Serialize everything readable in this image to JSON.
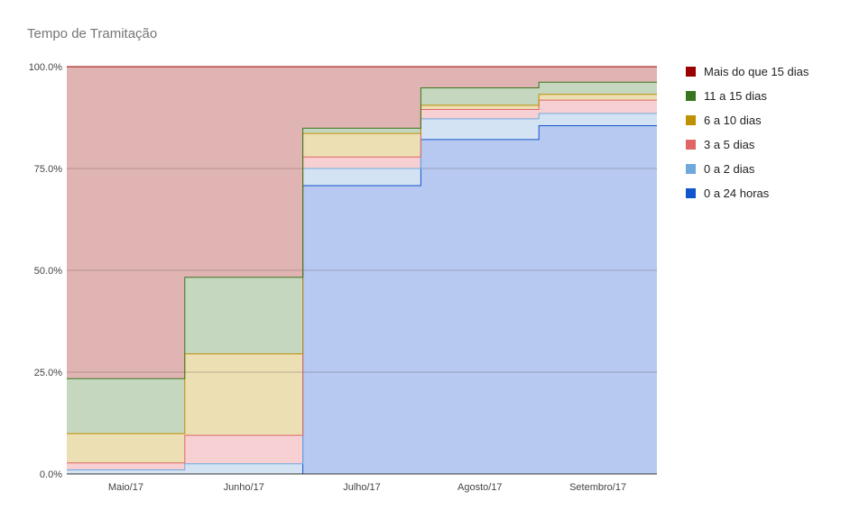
{
  "chart_data": {
    "type": "area",
    "title": "Tempo de Tramitação",
    "categories": [
      "Maio/17",
      "Junho/17",
      "Julho/17",
      "Agosto/17",
      "Setembro/17"
    ],
    "ylim": [
      0,
      100
    ],
    "yticks": [
      "0.0%",
      "25.0%",
      "50.0%",
      "75.0%",
      "100.0%"
    ],
    "stacked_percent": true,
    "grid": true,
    "legend_position": "right",
    "series": [
      {
        "name": "0 a 24 horas",
        "color": "#1155cc",
        "fill": "#b8c9f1",
        "values": [
          0.0,
          0.0,
          70.8,
          82.1,
          85.5
        ]
      },
      {
        "name": "0 a 2 dias",
        "color": "#6fa8dc",
        "fill": "#d4e3f3",
        "values": [
          1.0,
          2.5,
          4.2,
          5.1,
          3.0
        ]
      },
      {
        "name": "3 a 5 dias",
        "color": "#e06666",
        "fill": "#f6d0d2",
        "values": [
          1.7,
          7.0,
          2.8,
          2.3,
          3.3
        ]
      },
      {
        "name": "6 a 10 dias",
        "color": "#bf9000",
        "fill": "#ecdfb4",
        "values": [
          7.2,
          20.0,
          5.8,
          1.0,
          1.4
        ]
      },
      {
        "name": "11 a 15 dias",
        "color": "#38761d",
        "fill": "#c5d7bf",
        "values": [
          13.5,
          18.8,
          1.3,
          4.3,
          3.0
        ]
      },
      {
        "name": "Mais do que 15 dias",
        "color": "#990000",
        "fill": "#e1b4b4",
        "values": [
          76.6,
          51.7,
          15.1,
          5.2,
          3.8
        ]
      }
    ]
  },
  "legend_order": [
    5,
    4,
    3,
    2,
    1,
    0
  ]
}
